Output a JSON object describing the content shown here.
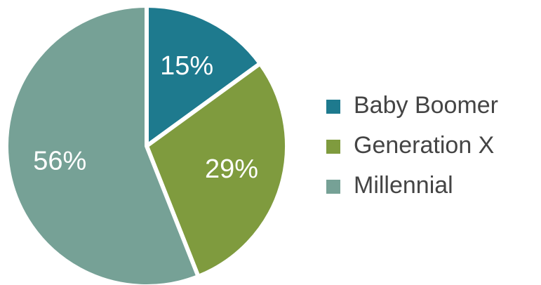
{
  "chart_data": {
    "type": "pie",
    "categories": [
      "Baby Boomer",
      "Generation X",
      "Millennial"
    ],
    "values": [
      15,
      29,
      56
    ],
    "value_labels": [
      "15%",
      "29%",
      "56%"
    ],
    "colors": [
      "#1e7a8e",
      "#7f9b3e",
      "#76a196"
    ],
    "legend": "right"
  }
}
